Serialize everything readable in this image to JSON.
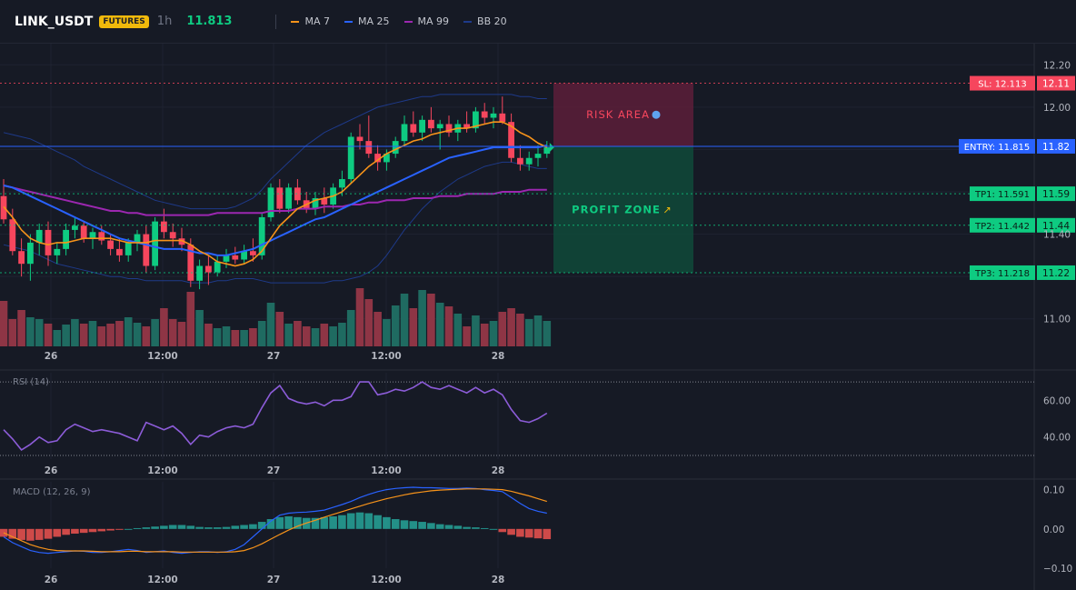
{
  "header": {
    "symbol": "LINK_USDT",
    "badge": "FUTURES",
    "timeframe": "1h",
    "price": "11.813",
    "legend": [
      {
        "name": "MA 7",
        "color": "#f7931a"
      },
      {
        "name": "MA 25",
        "color": "#2962ff"
      },
      {
        "name": "MA 99",
        "color": "#9c27b0"
      },
      {
        "name": "BB 20",
        "color": "#1e3a8a"
      }
    ]
  },
  "colors": {
    "up": "#0ecb81",
    "down": "#f6465d",
    "vol_up": "#1f6b61",
    "vol_down": "#8e3545"
  },
  "chart_data": [
    {
      "type": "candlestick",
      "title": "",
      "price_range": [
        10.87,
        12.3
      ],
      "y_ticks": [
        12.2,
        12.0,
        11.4,
        11.0
      ],
      "x_ticks": [
        "26",
        "12:00",
        "27",
        "12:00",
        "28"
      ],
      "candles": [
        [
          11.58,
          11.66,
          11.45,
          11.47
        ],
        [
          11.47,
          11.52,
          11.3,
          11.32
        ],
        [
          11.32,
          11.38,
          11.2,
          11.26
        ],
        [
          11.26,
          11.4,
          11.18,
          11.36
        ],
        [
          11.36,
          11.45,
          11.3,
          11.42
        ],
        [
          11.42,
          11.46,
          11.25,
          11.3
        ],
        [
          11.3,
          11.36,
          11.26,
          11.33
        ],
        [
          11.33,
          11.45,
          11.3,
          11.42
        ],
        [
          11.42,
          11.48,
          11.38,
          11.44
        ],
        [
          11.44,
          11.46,
          11.36,
          11.38
        ],
        [
          11.38,
          11.43,
          11.33,
          11.41
        ],
        [
          11.41,
          11.44,
          11.35,
          11.37
        ],
        [
          11.37,
          11.4,
          11.3,
          11.33
        ],
        [
          11.33,
          11.38,
          11.27,
          11.3
        ],
        [
          11.3,
          11.38,
          11.27,
          11.36
        ],
        [
          11.36,
          11.42,
          11.32,
          11.4
        ],
        [
          11.4,
          11.44,
          11.22,
          11.25
        ],
        [
          11.25,
          11.48,
          11.23,
          11.46
        ],
        [
          11.46,
          11.52,
          11.38,
          11.41
        ],
        [
          11.41,
          11.45,
          11.34,
          11.38
        ],
        [
          11.38,
          11.43,
          11.32,
          11.35
        ],
        [
          11.35,
          11.38,
          11.15,
          11.18
        ],
        [
          11.18,
          11.28,
          11.14,
          11.25
        ],
        [
          11.25,
          11.3,
          11.16,
          11.22
        ],
        [
          11.22,
          11.3,
          11.2,
          11.27
        ],
        [
          11.27,
          11.33,
          11.24,
          11.3
        ],
        [
          11.3,
          11.34,
          11.26,
          11.28
        ],
        [
          11.28,
          11.35,
          11.26,
          11.32
        ],
        [
          11.32,
          11.38,
          11.27,
          11.3
        ],
        [
          11.3,
          11.5,
          11.28,
          11.48
        ],
        [
          11.48,
          11.64,
          11.46,
          11.62
        ],
        [
          11.62,
          11.66,
          11.5,
          11.52
        ],
        [
          11.52,
          11.64,
          11.5,
          11.62
        ],
        [
          11.62,
          11.66,
          11.54,
          11.56
        ],
        [
          11.56,
          11.6,
          11.5,
          11.52
        ],
        [
          11.52,
          11.6,
          11.49,
          11.57
        ],
        [
          11.57,
          11.62,
          11.5,
          11.54
        ],
        [
          11.54,
          11.64,
          11.52,
          11.62
        ],
        [
          11.62,
          11.7,
          11.58,
          11.66
        ],
        [
          11.66,
          11.88,
          11.64,
          11.86
        ],
        [
          11.86,
          11.92,
          11.8,
          11.84
        ],
        [
          11.84,
          11.96,
          11.76,
          11.78
        ],
        [
          11.78,
          11.82,
          11.7,
          11.74
        ],
        [
          11.74,
          11.8,
          11.7,
          11.78
        ],
        [
          11.78,
          11.86,
          11.76,
          11.84
        ],
        [
          11.84,
          11.96,
          11.82,
          11.92
        ],
        [
          11.92,
          11.98,
          11.86,
          11.88
        ],
        [
          11.88,
          11.96,
          11.84,
          11.94
        ],
        [
          11.94,
          12.0,
          11.88,
          11.9
        ],
        [
          11.9,
          11.94,
          11.8,
          11.92
        ],
        [
          11.92,
          11.96,
          11.86,
          11.88
        ],
        [
          11.88,
          11.94,
          11.84,
          11.92
        ],
        [
          11.92,
          11.98,
          11.88,
          11.9
        ],
        [
          11.9,
          12.0,
          11.88,
          11.98
        ],
        [
          11.98,
          12.02,
          11.92,
          11.95
        ],
        [
          11.95,
          12.0,
          11.9,
          11.97
        ],
        [
          11.97,
          12.05,
          11.92,
          11.93
        ],
        [
          11.93,
          11.97,
          11.74,
          11.76
        ],
        [
          11.76,
          11.82,
          11.7,
          11.73
        ],
        [
          11.73,
          11.79,
          11.7,
          11.76
        ],
        [
          11.76,
          11.82,
          11.72,
          11.78
        ],
        [
          11.78,
          11.84,
          11.76,
          11.81
        ]
      ],
      "volumes": [
        50,
        30,
        40,
        32,
        30,
        25,
        18,
        24,
        30,
        25,
        28,
        22,
        25,
        28,
        32,
        26,
        22,
        30,
        42,
        30,
        27,
        60,
        40,
        25,
        20,
        22,
        18,
        18,
        20,
        28,
        48,
        38,
        25,
        28,
        22,
        20,
        25,
        22,
        26,
        40,
        64,
        52,
        38,
        30,
        45,
        58,
        42,
        62,
        58,
        48,
        44,
        36,
        22,
        34,
        25,
        28,
        38,
        42,
        36,
        30,
        34,
        28
      ],
      "ma7": [
        11.53,
        11.48,
        11.42,
        11.38,
        11.36,
        11.35,
        11.36,
        11.36,
        11.37,
        11.38,
        11.38,
        11.38,
        11.38,
        11.37,
        11.36,
        11.36,
        11.36,
        11.37,
        11.37,
        11.37,
        11.37,
        11.35,
        11.32,
        11.3,
        11.27,
        11.26,
        11.25,
        11.26,
        11.28,
        11.32,
        11.38,
        11.44,
        11.48,
        11.52,
        11.54,
        11.56,
        11.57,
        11.58,
        11.6,
        11.64,
        11.68,
        11.72,
        11.75,
        11.78,
        11.8,
        11.82,
        11.84,
        11.85,
        11.87,
        11.88,
        11.89,
        11.9,
        11.9,
        11.91,
        11.92,
        11.93,
        11.93,
        11.91,
        11.88,
        11.86,
        11.83,
        11.81
      ],
      "ma25": [
        11.63,
        11.62,
        11.6,
        11.58,
        11.56,
        11.54,
        11.52,
        11.5,
        11.48,
        11.46,
        11.44,
        11.42,
        11.4,
        11.38,
        11.37,
        11.36,
        11.35,
        11.34,
        11.33,
        11.33,
        11.33,
        11.32,
        11.31,
        11.31,
        11.3,
        11.3,
        11.31,
        11.32,
        11.33,
        11.35,
        11.37,
        11.39,
        11.41,
        11.43,
        11.45,
        11.47,
        11.48,
        11.5,
        11.52,
        11.54,
        11.56,
        11.58,
        11.6,
        11.62,
        11.64,
        11.66,
        11.68,
        11.7,
        11.72,
        11.74,
        11.76,
        11.77,
        11.78,
        11.79,
        11.8,
        11.81,
        11.81,
        11.81,
        11.81,
        11.81,
        11.81,
        11.82
      ],
      "ma99": [
        11.63,
        11.62,
        11.61,
        11.6,
        11.59,
        11.58,
        11.57,
        11.56,
        11.55,
        11.54,
        11.53,
        11.52,
        11.51,
        11.51,
        11.5,
        11.5,
        11.49,
        11.49,
        11.49,
        11.49,
        11.49,
        11.49,
        11.49,
        11.49,
        11.5,
        11.5,
        11.5,
        11.5,
        11.5,
        11.5,
        11.51,
        11.51,
        11.51,
        11.52,
        11.52,
        11.52,
        11.53,
        11.53,
        11.53,
        11.54,
        11.54,
        11.55,
        11.55,
        11.56,
        11.56,
        11.56,
        11.57,
        11.57,
        11.57,
        11.58,
        11.58,
        11.58,
        11.59,
        11.59,
        11.59,
        11.59,
        11.6,
        11.6,
        11.6,
        11.61,
        11.61,
        11.61
      ],
      "bb_upper": [
        11.88,
        11.87,
        11.86,
        11.85,
        11.83,
        11.81,
        11.79,
        11.77,
        11.75,
        11.72,
        11.7,
        11.68,
        11.66,
        11.64,
        11.62,
        11.6,
        11.58,
        11.56,
        11.55,
        11.54,
        11.53,
        11.52,
        11.52,
        11.52,
        11.52,
        11.52,
        11.53,
        11.55,
        11.57,
        11.61,
        11.66,
        11.7,
        11.74,
        11.78,
        11.82,
        11.85,
        11.88,
        11.9,
        11.92,
        11.94,
        11.96,
        11.98,
        12.0,
        12.01,
        12.02,
        12.03,
        12.04,
        12.05,
        12.05,
        12.06,
        12.06,
        12.06,
        12.06,
        12.06,
        12.06,
        12.06,
        12.06,
        12.06,
        12.05,
        12.05,
        12.04,
        12.04
      ],
      "bb_lower": [
        11.35,
        11.34,
        11.33,
        11.32,
        11.3,
        11.28,
        11.26,
        11.25,
        11.24,
        11.23,
        11.22,
        11.21,
        11.2,
        11.2,
        11.19,
        11.19,
        11.18,
        11.18,
        11.18,
        11.18,
        11.18,
        11.17,
        11.17,
        11.17,
        11.18,
        11.18,
        11.19,
        11.19,
        11.19,
        11.18,
        11.17,
        11.17,
        11.17,
        11.17,
        11.17,
        11.17,
        11.17,
        11.18,
        11.18,
        11.19,
        11.2,
        11.22,
        11.25,
        11.3,
        11.36,
        11.42,
        11.47,
        11.52,
        11.56,
        11.6,
        11.63,
        11.66,
        11.68,
        11.7,
        11.72,
        11.73,
        11.74,
        11.74,
        11.73,
        11.72,
        11.71,
        11.71
      ],
      "trade_levels": [
        {
          "key": "sl",
          "label": "SL: 12.113",
          "axis": "12.11",
          "value": 12.113,
          "color": "#f6465d"
        },
        {
          "key": "entry",
          "label": "ENTRY: 11.815",
          "axis": "11.82",
          "value": 11.815,
          "color": "#2962ff"
        },
        {
          "key": "tp1",
          "label": "TP1: 11.591",
          "axis": "11.59",
          "value": 11.591,
          "color": "#0ecb81"
        },
        {
          "key": "tp2",
          "label": "TP2: 11.442",
          "axis": "11.44",
          "value": 11.442,
          "color": "#0ecb81"
        },
        {
          "key": "tp3",
          "label": "TP3: 11.218",
          "axis": "11.22",
          "value": 11.218,
          "color": "#0ecb81"
        }
      ],
      "zones": {
        "risk": "RISK AREA",
        "profit": "PROFIT ZONE"
      }
    },
    {
      "type": "line",
      "title": "RSI (14)",
      "y_range": [
        28,
        75
      ],
      "y_ticks": [
        60.0,
        40.0
      ],
      "levels": [
        70,
        30
      ],
      "x_ticks": [
        "26",
        "12:00",
        "27",
        "12:00",
        "28"
      ],
      "values": [
        44,
        39,
        33,
        36,
        40,
        37,
        38,
        44,
        47,
        45,
        43,
        44,
        43,
        42,
        40,
        38,
        48,
        46,
        44,
        46,
        42,
        36,
        41,
        40,
        43,
        45,
        46,
        45,
        47,
        56,
        64,
        68,
        61,
        59,
        58,
        59,
        57,
        60,
        60,
        62,
        70,
        70,
        63,
        64,
        66,
        65,
        67,
        70,
        67,
        66,
        68,
        66,
        64,
        67,
        64,
        66,
        63,
        55,
        49,
        48,
        50,
        53
      ]
    },
    {
      "type": "bar+line",
      "title": "MACD (12, 26, 9)",
      "y_range": [
        -0.1,
        0.12
      ],
      "y_ticks": [
        0.1,
        0.0,
        -0.1
      ],
      "x_ticks": [
        "26",
        "12:00",
        "27",
        "12:00",
        "28"
      ],
      "histogram": [
        -0.02,
        -0.025,
        -0.028,
        -0.03,
        -0.028,
        -0.025,
        -0.02,
        -0.015,
        -0.012,
        -0.01,
        -0.008,
        -0.006,
        -0.004,
        -0.002,
        0.0,
        0.002,
        0.004,
        0.006,
        0.008,
        0.01,
        0.01,
        0.008,
        0.005,
        0.004,
        0.004,
        0.005,
        0.008,
        0.01,
        0.012,
        0.018,
        0.025,
        0.03,
        0.032,
        0.03,
        0.028,
        0.028,
        0.03,
        0.032,
        0.035,
        0.04,
        0.042,
        0.04,
        0.035,
        0.03,
        0.025,
        0.022,
        0.02,
        0.018,
        0.015,
        0.012,
        0.01,
        0.008,
        0.005,
        0.004,
        0.002,
        0.0,
        -0.008,
        -0.015,
        -0.02,
        -0.022,
        -0.024,
        -0.026
      ],
      "macd": [
        -0.02,
        -0.035,
        -0.045,
        -0.055,
        -0.06,
        -0.062,
        -0.06,
        -0.058,
        -0.056,
        -0.057,
        -0.06,
        -0.06,
        -0.058,
        -0.055,
        -0.052,
        -0.055,
        -0.06,
        -0.058,
        -0.056,
        -0.06,
        -0.062,
        -0.06,
        -0.058,
        -0.058,
        -0.06,
        -0.058,
        -0.052,
        -0.04,
        -0.02,
        0.0,
        0.02,
        0.035,
        0.04,
        0.042,
        0.043,
        0.045,
        0.048,
        0.055,
        0.062,
        0.07,
        0.08,
        0.088,
        0.095,
        0.1,
        0.103,
        0.105,
        0.106,
        0.105,
        0.105,
        0.104,
        0.103,
        0.103,
        0.104,
        0.103,
        0.1,
        0.098,
        0.095,
        0.08,
        0.065,
        0.052,
        0.045,
        0.04
      ],
      "signal": [
        -0.01,
        -0.02,
        -0.03,
        -0.04,
        -0.047,
        -0.052,
        -0.055,
        -0.056,
        -0.056,
        -0.056,
        -0.057,
        -0.058,
        -0.058,
        -0.058,
        -0.057,
        -0.057,
        -0.058,
        -0.058,
        -0.058,
        -0.058,
        -0.059,
        -0.059,
        -0.059,
        -0.059,
        -0.059,
        -0.059,
        -0.058,
        -0.055,
        -0.048,
        -0.038,
        -0.026,
        -0.014,
        -0.003,
        0.007,
        0.015,
        0.022,
        0.03,
        0.037,
        0.044,
        0.051,
        0.058,
        0.065,
        0.071,
        0.077,
        0.082,
        0.087,
        0.091,
        0.094,
        0.097,
        0.099,
        0.1,
        0.101,
        0.102,
        0.102,
        0.102,
        0.101,
        0.1,
        0.096,
        0.09,
        0.084,
        0.077,
        0.07
      ]
    }
  ]
}
